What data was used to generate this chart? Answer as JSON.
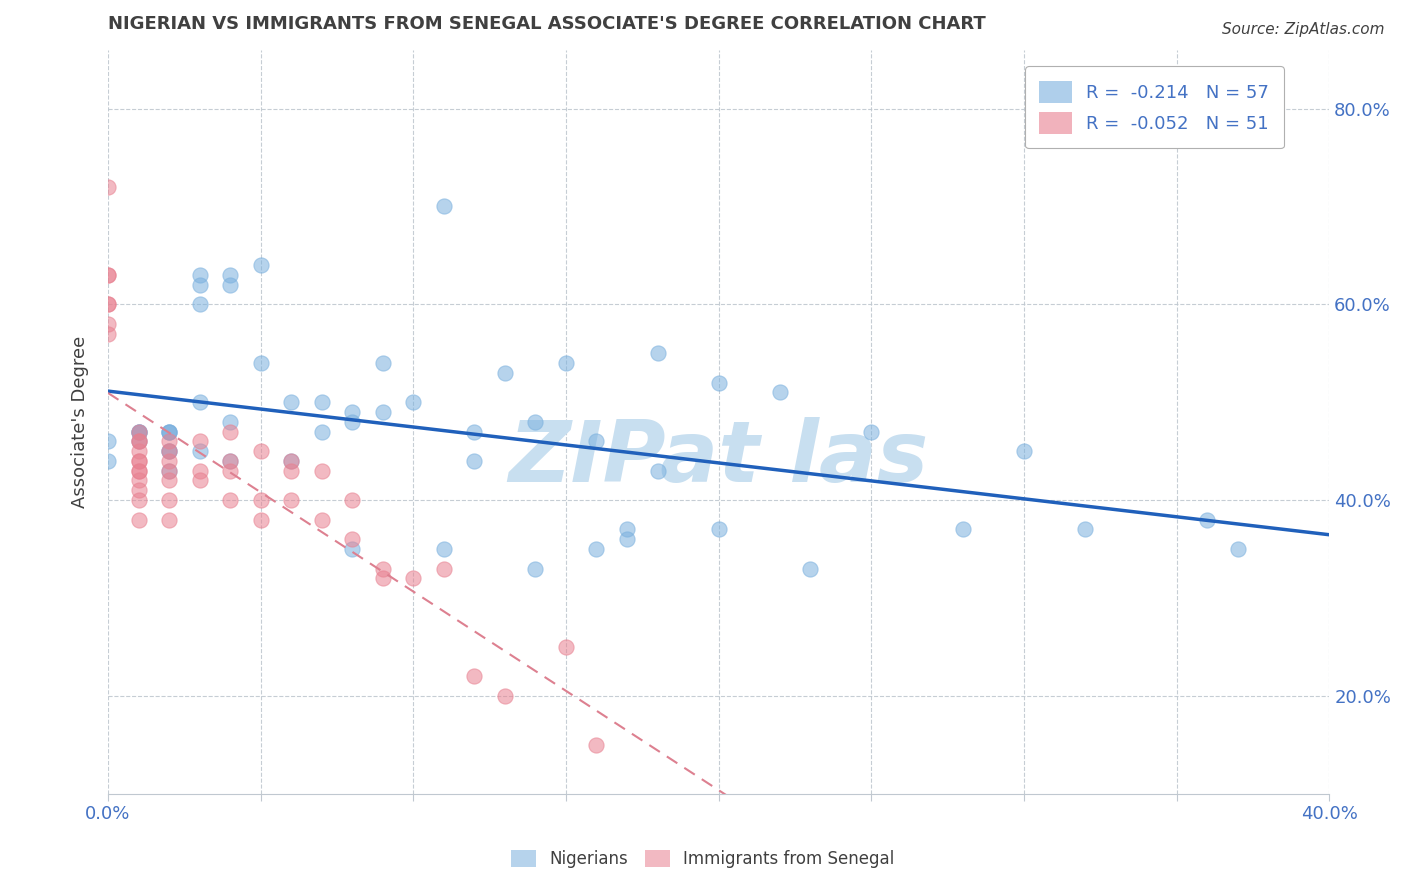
{
  "title": "NIGERIAN VS IMMIGRANTS FROM SENEGAL ASSOCIATE'S DEGREE CORRELATION CHART",
  "source": "Source: ZipAtlas.com",
  "ylabel_label": "Associate's Degree",
  "xlim": [
    0.0,
    0.4
  ],
  "ylim": [
    0.1,
    0.86
  ],
  "xticks": [
    0.0,
    0.05,
    0.1,
    0.15,
    0.2,
    0.25,
    0.3,
    0.35,
    0.4
  ],
  "yticks": [
    0.2,
    0.4,
    0.6,
    0.8
  ],
  "blue_R": -0.214,
  "blue_N": 57,
  "pink_R": -0.052,
  "pink_N": 51,
  "blue_scatter_x": [
    0.0,
    0.0,
    0.01,
    0.01,
    0.01,
    0.01,
    0.02,
    0.02,
    0.02,
    0.02,
    0.02,
    0.02,
    0.03,
    0.03,
    0.03,
    0.03,
    0.03,
    0.04,
    0.04,
    0.04,
    0.04,
    0.05,
    0.05,
    0.06,
    0.06,
    0.07,
    0.07,
    0.08,
    0.08,
    0.08,
    0.09,
    0.09,
    0.1,
    0.11,
    0.11,
    0.12,
    0.12,
    0.13,
    0.14,
    0.14,
    0.15,
    0.16,
    0.16,
    0.17,
    0.17,
    0.18,
    0.18,
    0.2,
    0.2,
    0.22,
    0.23,
    0.25,
    0.28,
    0.3,
    0.32,
    0.36,
    0.37
  ],
  "blue_scatter_y": [
    0.46,
    0.44,
    0.47,
    0.47,
    0.46,
    0.47,
    0.47,
    0.47,
    0.47,
    0.45,
    0.45,
    0.43,
    0.63,
    0.62,
    0.6,
    0.5,
    0.45,
    0.63,
    0.62,
    0.48,
    0.44,
    0.64,
    0.54,
    0.5,
    0.44,
    0.5,
    0.47,
    0.49,
    0.48,
    0.35,
    0.54,
    0.49,
    0.5,
    0.7,
    0.35,
    0.47,
    0.44,
    0.53,
    0.48,
    0.33,
    0.54,
    0.46,
    0.35,
    0.37,
    0.36,
    0.55,
    0.43,
    0.52,
    0.37,
    0.51,
    0.33,
    0.47,
    0.37,
    0.45,
    0.37,
    0.38,
    0.35
  ],
  "pink_scatter_x": [
    0.0,
    0.0,
    0.0,
    0.0,
    0.0,
    0.0,
    0.0,
    0.01,
    0.01,
    0.01,
    0.01,
    0.01,
    0.01,
    0.01,
    0.01,
    0.01,
    0.01,
    0.01,
    0.01,
    0.02,
    0.02,
    0.02,
    0.02,
    0.02,
    0.02,
    0.02,
    0.03,
    0.03,
    0.03,
    0.04,
    0.04,
    0.04,
    0.04,
    0.05,
    0.05,
    0.05,
    0.06,
    0.06,
    0.06,
    0.07,
    0.07,
    0.08,
    0.08,
    0.09,
    0.09,
    0.1,
    0.11,
    0.12,
    0.13,
    0.15,
    0.16
  ],
  "pink_scatter_y": [
    0.63,
    0.63,
    0.6,
    0.6,
    0.58,
    0.57,
    0.72,
    0.47,
    0.46,
    0.46,
    0.45,
    0.44,
    0.44,
    0.43,
    0.43,
    0.42,
    0.41,
    0.4,
    0.38,
    0.46,
    0.45,
    0.44,
    0.43,
    0.42,
    0.4,
    0.38,
    0.46,
    0.43,
    0.42,
    0.47,
    0.44,
    0.43,
    0.4,
    0.45,
    0.4,
    0.38,
    0.44,
    0.43,
    0.4,
    0.43,
    0.38,
    0.4,
    0.36,
    0.33,
    0.32,
    0.32,
    0.33,
    0.22,
    0.2,
    0.25,
    0.15
  ],
  "blue_color": "#7ab0de",
  "pink_color": "#e88090",
  "blue_line_color": "#2060bb",
  "pink_line_color": "#dd8090",
  "background_color": "#ffffff",
  "grid_color": "#c0c8d0",
  "title_color": "#404040",
  "axis_color": "#4472c4",
  "watermark_color": "#c8dff0",
  "legend_label_blue": "R =  -0.214   N = 57",
  "legend_label_pink": "R =  -0.052   N = 51",
  "bottom_legend_nigerians": "Nigerians",
  "bottom_legend_senegal": "Immigrants from Senegal"
}
